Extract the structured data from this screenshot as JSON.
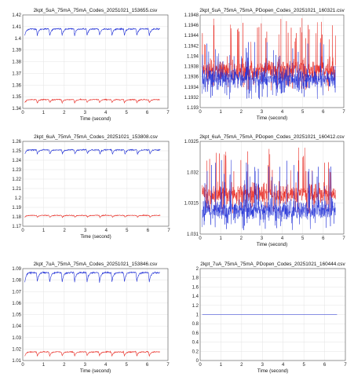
{
  "chart_data": [
    {
      "type": "line",
      "title": "2kpt_5uA_75mA_75mA_Codes_20251021_153655.csv",
      "xlabel": "Time (second)",
      "ylabel": "",
      "xlim": [
        0,
        7
      ],
      "ylim": [
        1.34,
        1.42
      ],
      "xticks": [
        "0",
        "1",
        "2",
        "3",
        "4",
        "5",
        "6",
        "7"
      ],
      "yticks": [
        "1.34",
        "1.35",
        "1.36",
        "1.37",
        "1.38",
        "1.39",
        "1.4",
        "1.41",
        "1.42"
      ],
      "grid": true,
      "pattern": "sawtooth",
      "series": [
        {
          "color": "#1f2fd6",
          "x_range": [
            0.1,
            6.6
          ],
          "baseline": 1.408,
          "drop": 1.4025,
          "period": 0.6,
          "noise": 0.0003
        },
        {
          "color": "#e8261e",
          "x_range": [
            0.1,
            6.6
          ],
          "baseline": 1.3475,
          "drop": 1.3448,
          "period": 0.6,
          "noise": 0.0002
        }
      ]
    },
    {
      "type": "line",
      "title": "2kpt_5uA_75mA_75mA_PDopen_Codes_20251021_160321.csv",
      "xlabel": "Time (second)",
      "ylabel": "",
      "xlim": [
        0,
        7
      ],
      "ylim": [
        1.193,
        1.1948
      ],
      "xticks": [
        "0",
        "1",
        "2",
        "3",
        "4",
        "5",
        "6",
        "7"
      ],
      "yticks": [
        "1.193",
        "1.1932",
        "1.1934",
        "1.1936",
        "1.1938",
        "1.194",
        "1.1942",
        "1.1944",
        "1.1946",
        "1.1948"
      ],
      "grid": true,
      "pattern": "noise",
      "series": [
        {
          "color": "#e8261e",
          "x_range": [
            0.1,
            6.6
          ],
          "mean": 1.19372,
          "sd": 0.0001,
          "spike_up": 1.19475
        },
        {
          "color": "#1f2fd6",
          "x_range": [
            0.1,
            6.6
          ],
          "mean": 1.19356,
          "sd": 0.0001,
          "spike_up": 1.1943
        }
      ]
    },
    {
      "type": "line",
      "title": "2kpt_6uA_75mA_75mA_Codes_20251021_153808.csv",
      "xlabel": "Time (second)",
      "ylabel": "",
      "xlim": [
        0,
        7
      ],
      "ylim": [
        1.17,
        1.26
      ],
      "xticks": [
        "0",
        "1",
        "2",
        "3",
        "4",
        "5",
        "6",
        "7"
      ],
      "yticks": [
        "1.17",
        "1.18",
        "1.19",
        "1.2",
        "1.21",
        "1.22",
        "1.23",
        "1.24",
        "1.25",
        "1.26"
      ],
      "grid": true,
      "pattern": "sawtooth",
      "series": [
        {
          "color": "#1f2fd6",
          "x_range": [
            0.1,
            6.6
          ],
          "baseline": 1.251,
          "drop": 1.2465,
          "period": 0.6,
          "noise": 0.0003
        },
        {
          "color": "#e8261e",
          "x_range": [
            0.1,
            6.6
          ],
          "baseline": 1.1815,
          "drop": 1.1795,
          "period": 0.6,
          "noise": 0.0002
        }
      ]
    },
    {
      "type": "line",
      "title": "2kpt_6uA_75mA_75mA_PDopen_Codes_20251021_160412.csv",
      "xlabel": "Time (second)",
      "ylabel": "",
      "xlim": [
        0,
        7
      ],
      "ylim": [
        1.031,
        1.0325
      ],
      "xticks": [
        "0",
        "1",
        "2",
        "3",
        "4",
        "5",
        "6",
        "7"
      ],
      "yticks": [
        "1.031",
        "1.0315",
        "1.032",
        "1.0325"
      ],
      "grid": true,
      "pattern": "noise",
      "series": [
        {
          "color": "#e8261e",
          "x_range": [
            0.1,
            6.6
          ],
          "mean": 1.03165,
          "sd": 8e-05,
          "spike_up": 1.0324
        },
        {
          "color": "#1f2fd6",
          "x_range": [
            0.1,
            6.6
          ],
          "mean": 1.03138,
          "sd": 8e-05,
          "spike_up": 1.0322
        }
      ]
    },
    {
      "type": "line",
      "title": "2kpt_7uA_75mA_75mA_Codes_20251021_153846.csv",
      "xlabel": "Time (second)",
      "ylabel": "",
      "xlim": [
        0,
        7
      ],
      "ylim": [
        1.01,
        1.09
      ],
      "xticks": [
        "0",
        "1",
        "2",
        "3",
        "4",
        "5",
        "6",
        "7"
      ],
      "yticks": [
        "1.01",
        "1.02",
        "1.03",
        "1.04",
        "1.05",
        "1.06",
        "1.07",
        "1.08",
        "1.09"
      ],
      "grid": true,
      "pattern": "sawtooth",
      "series": [
        {
          "color": "#1f2fd6",
          "x_range": [
            0.1,
            6.6
          ],
          "baseline": 1.0865,
          "drop": 1.0785,
          "period": 0.6,
          "noise": 0.0003
        },
        {
          "color": "#e8261e",
          "x_range": [
            0.1,
            6.6
          ],
          "baseline": 1.0175,
          "drop": 1.014,
          "period": 0.6,
          "noise": 0.0002
        }
      ]
    },
    {
      "type": "line",
      "title": "2kpt_7uA_75mA_75mA_PDopen_Codes_20251021_160444.csv",
      "xlabel": "Time (second)",
      "ylabel": "",
      "xlim": [
        0,
        7
      ],
      "ylim": [
        0,
        2
      ],
      "xticks": [
        "0",
        "1",
        "2",
        "3",
        "4",
        "5",
        "6",
        "7"
      ],
      "yticks": [
        "0",
        "0.2",
        "0.4",
        "0.6",
        "0.8",
        "1",
        "1.2",
        "1.4",
        "1.6",
        "1.8",
        "2"
      ],
      "grid": true,
      "pattern": "flat",
      "series": [
        {
          "color": "#1f2fd6",
          "x_range": [
            0.1,
            6.6
          ],
          "value": 1
        }
      ]
    }
  ]
}
